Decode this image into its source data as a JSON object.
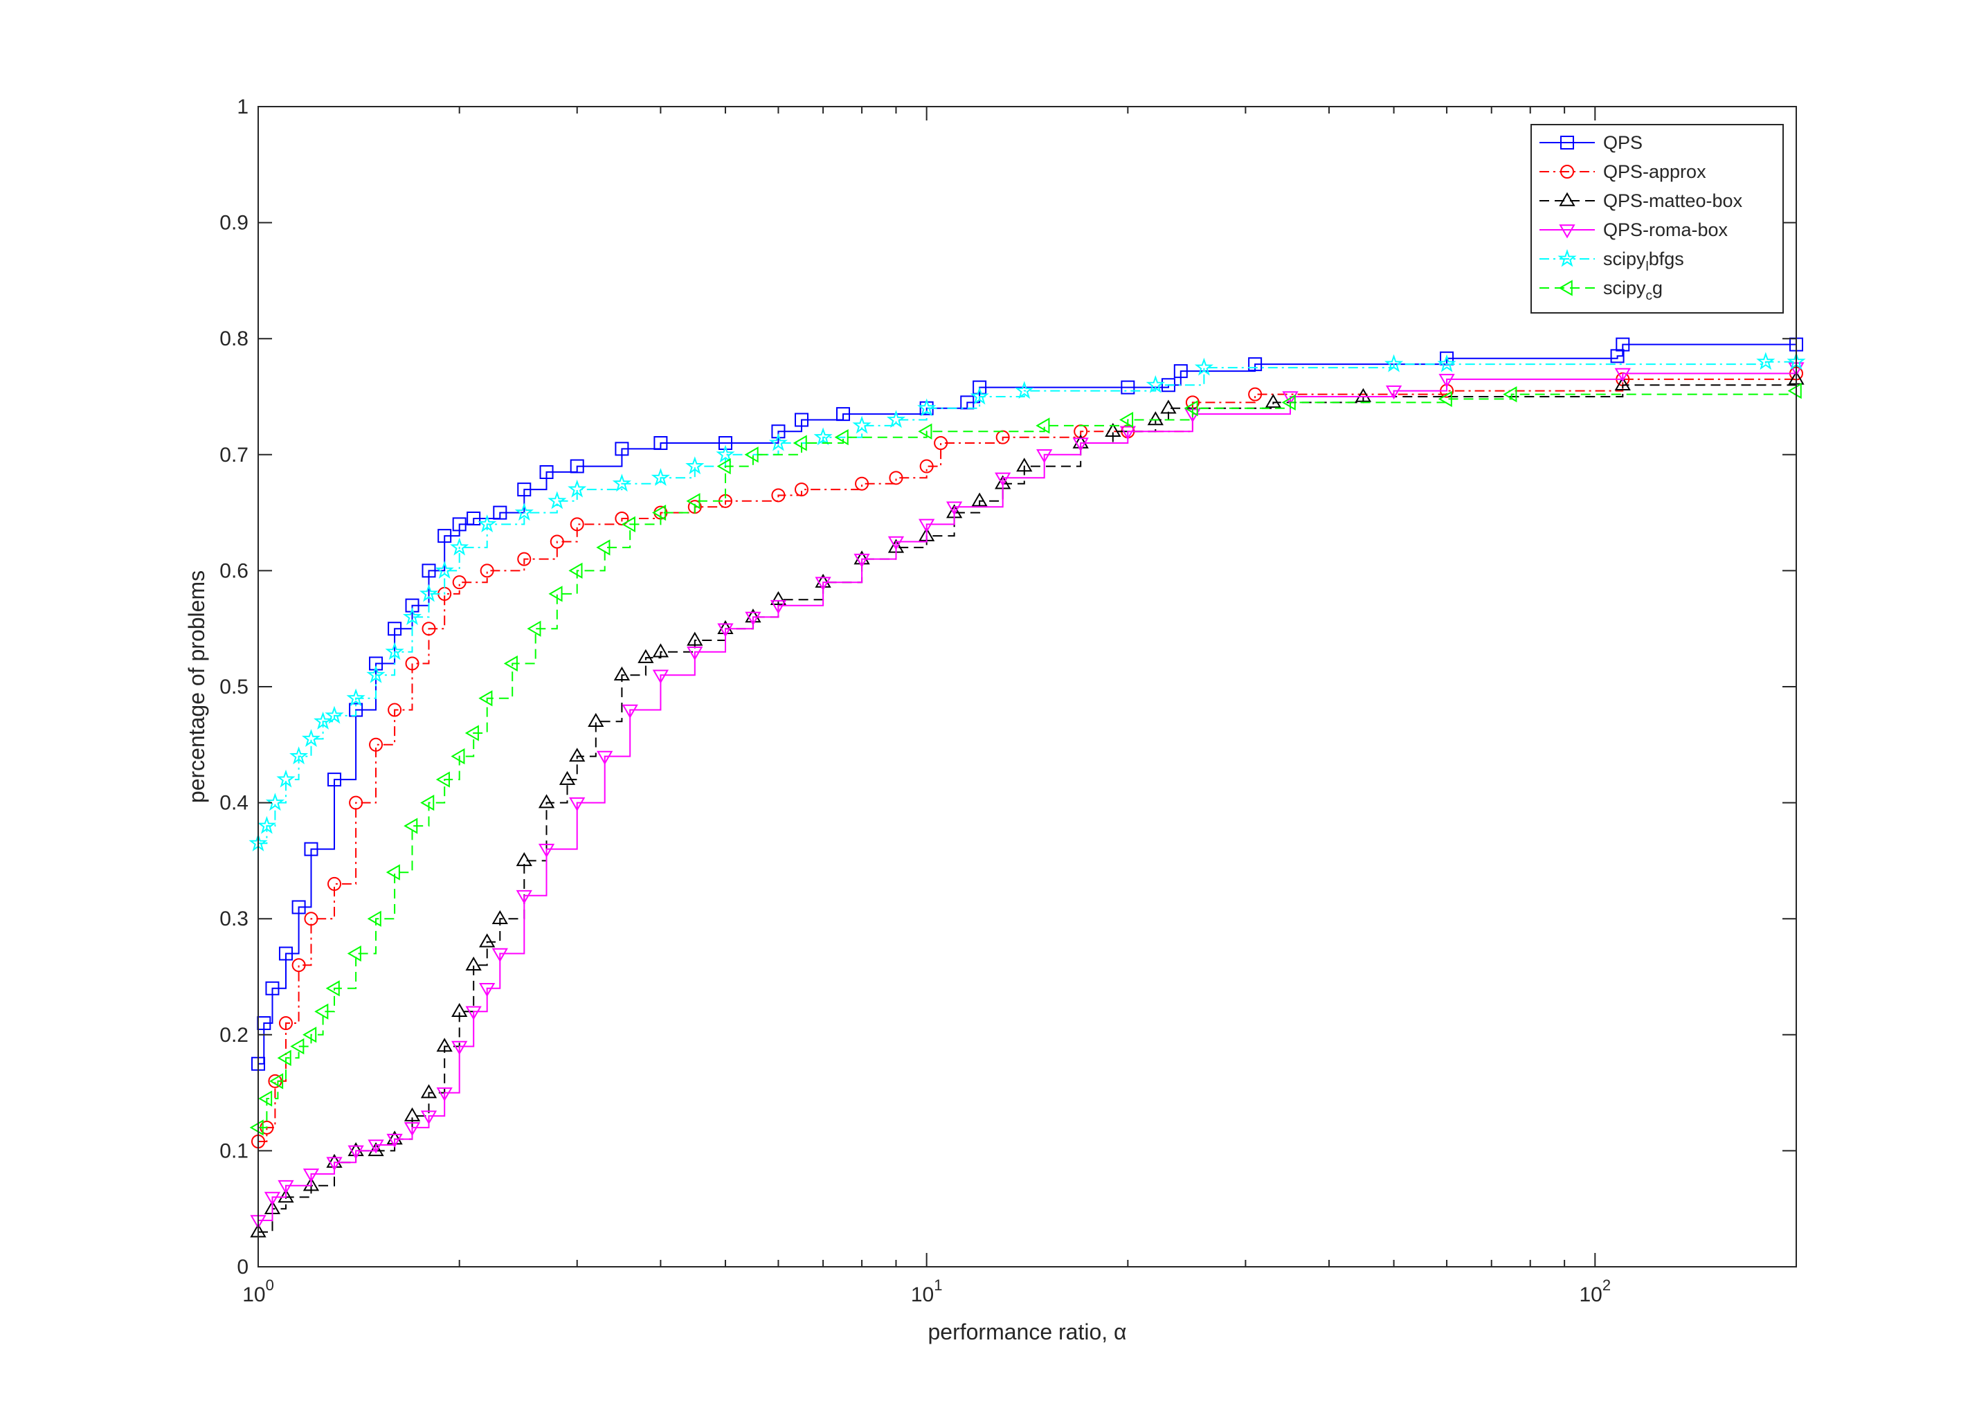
{
  "chart_data": {
    "type": "line",
    "xscale": "log",
    "xlim": [
      1,
      200
    ],
    "ylim": [
      0,
      1
    ],
    "xlabel": "performance ratio, α",
    "ylabel": "percentage of problems",
    "x_ticks": [
      1,
      10,
      100
    ],
    "x_tick_labels": [
      {
        "base": "10",
        "exp": "0"
      },
      {
        "base": "10",
        "exp": "1"
      },
      {
        "base": "10",
        "exp": "2"
      }
    ],
    "y_ticks": [
      0,
      0.1,
      0.2,
      0.3,
      0.4,
      0.5,
      0.6,
      0.7,
      0.8,
      0.9,
      1
    ],
    "y_tick_labels": [
      "0",
      "0.1",
      "0.2",
      "0.3",
      "0.4",
      "0.5",
      "0.6",
      "0.7",
      "0.8",
      "0.9",
      "1"
    ],
    "grid": false,
    "legend_position": "top-right",
    "series": [
      {
        "label": "QPS",
        "label_sub": "",
        "label_rest": "",
        "color": "#0000ff",
        "marker": "square",
        "dash": "solid",
        "x": [
          1.0,
          1.02,
          1.05,
          1.1,
          1.15,
          1.2,
          1.3,
          1.4,
          1.5,
          1.6,
          1.7,
          1.8,
          1.9,
          2.0,
          2.1,
          2.3,
          2.5,
          2.7,
          3.0,
          3.5,
          4.0,
          5.0,
          6.0,
          6.5,
          7.5,
          10.0,
          11.5,
          12.0,
          20.0,
          23.0,
          24.0,
          31.0,
          60.0,
          108.0,
          110.0,
          200.0
        ],
        "y": [
          0.175,
          0.21,
          0.24,
          0.27,
          0.31,
          0.36,
          0.42,
          0.48,
          0.52,
          0.55,
          0.57,
          0.6,
          0.63,
          0.64,
          0.645,
          0.65,
          0.67,
          0.685,
          0.69,
          0.705,
          0.71,
          0.71,
          0.72,
          0.73,
          0.735,
          0.74,
          0.745,
          0.758,
          0.758,
          0.76,
          0.772,
          0.778,
          0.783,
          0.785,
          0.795,
          0.795
        ]
      },
      {
        "label": "QPS-approx",
        "label_sub": "",
        "label_rest": "",
        "color": "#ff0000",
        "marker": "circle",
        "dash": "dashdot",
        "x": [
          1.0,
          1.03,
          1.06,
          1.1,
          1.15,
          1.2,
          1.3,
          1.4,
          1.5,
          1.6,
          1.7,
          1.8,
          1.9,
          2.0,
          2.2,
          2.5,
          2.8,
          3.0,
          3.5,
          4.0,
          4.5,
          5.0,
          6.0,
          6.5,
          8.0,
          9.0,
          10.0,
          10.5,
          13.0,
          17.0,
          20.0,
          25.0,
          31.0,
          60.0,
          110.0,
          200.0
        ],
        "y": [
          0.108,
          0.12,
          0.16,
          0.21,
          0.26,
          0.3,
          0.33,
          0.4,
          0.45,
          0.48,
          0.52,
          0.55,
          0.58,
          0.59,
          0.6,
          0.61,
          0.625,
          0.64,
          0.645,
          0.65,
          0.655,
          0.66,
          0.665,
          0.67,
          0.675,
          0.68,
          0.69,
          0.71,
          0.715,
          0.72,
          0.72,
          0.745,
          0.752,
          0.755,
          0.765,
          0.77
        ]
      },
      {
        "label": "QPS-matteo-box",
        "label_sub": "",
        "label_rest": "",
        "color": "#000000",
        "marker": "triangle-up",
        "dash": "dashed",
        "x": [
          1.0,
          1.05,
          1.1,
          1.2,
          1.3,
          1.4,
          1.5,
          1.6,
          1.7,
          1.8,
          1.9,
          2.0,
          2.1,
          2.2,
          2.3,
          2.5,
          2.7,
          2.9,
          3.0,
          3.2,
          3.5,
          3.8,
          4.0,
          4.5,
          5.0,
          5.5,
          6.0,
          7.0,
          8.0,
          9.0,
          10.0,
          11.0,
          12.0,
          13.0,
          14.0,
          17.0,
          19.0,
          22.0,
          23.0,
          33.0,
          45.0,
          110.0,
          200.0
        ],
        "y": [
          0.03,
          0.05,
          0.06,
          0.07,
          0.09,
          0.1,
          0.1,
          0.11,
          0.13,
          0.15,
          0.19,
          0.22,
          0.26,
          0.28,
          0.3,
          0.35,
          0.4,
          0.42,
          0.44,
          0.47,
          0.51,
          0.525,
          0.53,
          0.54,
          0.55,
          0.56,
          0.575,
          0.59,
          0.61,
          0.62,
          0.63,
          0.65,
          0.66,
          0.675,
          0.69,
          0.71,
          0.72,
          0.73,
          0.74,
          0.745,
          0.75,
          0.76,
          0.765
        ]
      },
      {
        "label": "QPS-roma-box",
        "label_sub": "",
        "label_rest": "",
        "color": "#ff00ff",
        "marker": "triangle-down",
        "dash": "solid",
        "x": [
          1.0,
          1.05,
          1.1,
          1.2,
          1.3,
          1.4,
          1.5,
          1.6,
          1.7,
          1.8,
          1.9,
          2.0,
          2.1,
          2.2,
          2.3,
          2.5,
          2.7,
          3.0,
          3.3,
          3.6,
          4.0,
          4.5,
          5.0,
          5.5,
          6.0,
          7.0,
          8.0,
          9.0,
          10.0,
          11.0,
          13.0,
          15.0,
          17.0,
          20.0,
          25.0,
          35.0,
          50.0,
          60.0,
          110.0,
          200.0
        ],
        "y": [
          0.04,
          0.06,
          0.07,
          0.08,
          0.09,
          0.1,
          0.105,
          0.11,
          0.12,
          0.13,
          0.15,
          0.19,
          0.22,
          0.24,
          0.27,
          0.32,
          0.36,
          0.4,
          0.44,
          0.48,
          0.51,
          0.53,
          0.55,
          0.56,
          0.57,
          0.59,
          0.61,
          0.625,
          0.64,
          0.655,
          0.68,
          0.7,
          0.71,
          0.72,
          0.735,
          0.75,
          0.755,
          0.765,
          0.77,
          0.775
        ]
      },
      {
        "label": "scipy",
        "label_sub": "l",
        "label_rest": "bfgs",
        "color": "#00ffff",
        "marker": "star",
        "dash": "dashdot",
        "x": [
          1.0,
          1.03,
          1.06,
          1.1,
          1.15,
          1.2,
          1.25,
          1.3,
          1.4,
          1.5,
          1.6,
          1.7,
          1.8,
          1.9,
          2.0,
          2.2,
          2.5,
          2.8,
          3.0,
          3.5,
          4.0,
          4.5,
          5.0,
          6.0,
          7.0,
          8.0,
          9.0,
          10.0,
          12.0,
          14.0,
          22.0,
          26.0,
          50.0,
          60.0,
          180.0,
          200.0
        ],
        "y": [
          0.365,
          0.38,
          0.4,
          0.42,
          0.44,
          0.455,
          0.47,
          0.475,
          0.49,
          0.51,
          0.53,
          0.56,
          0.58,
          0.6,
          0.62,
          0.64,
          0.65,
          0.66,
          0.67,
          0.675,
          0.68,
          0.69,
          0.7,
          0.71,
          0.715,
          0.725,
          0.73,
          0.74,
          0.75,
          0.755,
          0.76,
          0.775,
          0.778,
          0.778,
          0.78,
          0.78
        ]
      },
      {
        "label": "scipy",
        "label_sub": "c",
        "label_rest": "g",
        "color": "#00ff00",
        "marker": "triangle-left",
        "dash": "dashed",
        "x": [
          1.0,
          1.03,
          1.07,
          1.1,
          1.15,
          1.2,
          1.25,
          1.3,
          1.4,
          1.5,
          1.6,
          1.7,
          1.8,
          1.9,
          2.0,
          2.1,
          2.2,
          2.4,
          2.6,
          2.8,
          3.0,
          3.3,
          3.6,
          4.0,
          4.5,
          5.0,
          5.5,
          6.5,
          7.5,
          10.0,
          15.0,
          20.0,
          25.0,
          35.0,
          60.0,
          75.0,
          200.0
        ],
        "y": [
          0.12,
          0.145,
          0.16,
          0.18,
          0.19,
          0.2,
          0.22,
          0.24,
          0.27,
          0.3,
          0.34,
          0.38,
          0.4,
          0.42,
          0.44,
          0.46,
          0.49,
          0.52,
          0.55,
          0.58,
          0.6,
          0.62,
          0.64,
          0.65,
          0.66,
          0.69,
          0.7,
          0.71,
          0.715,
          0.72,
          0.725,
          0.73,
          0.74,
          0.745,
          0.748,
          0.752,
          0.755
        ]
      }
    ]
  }
}
